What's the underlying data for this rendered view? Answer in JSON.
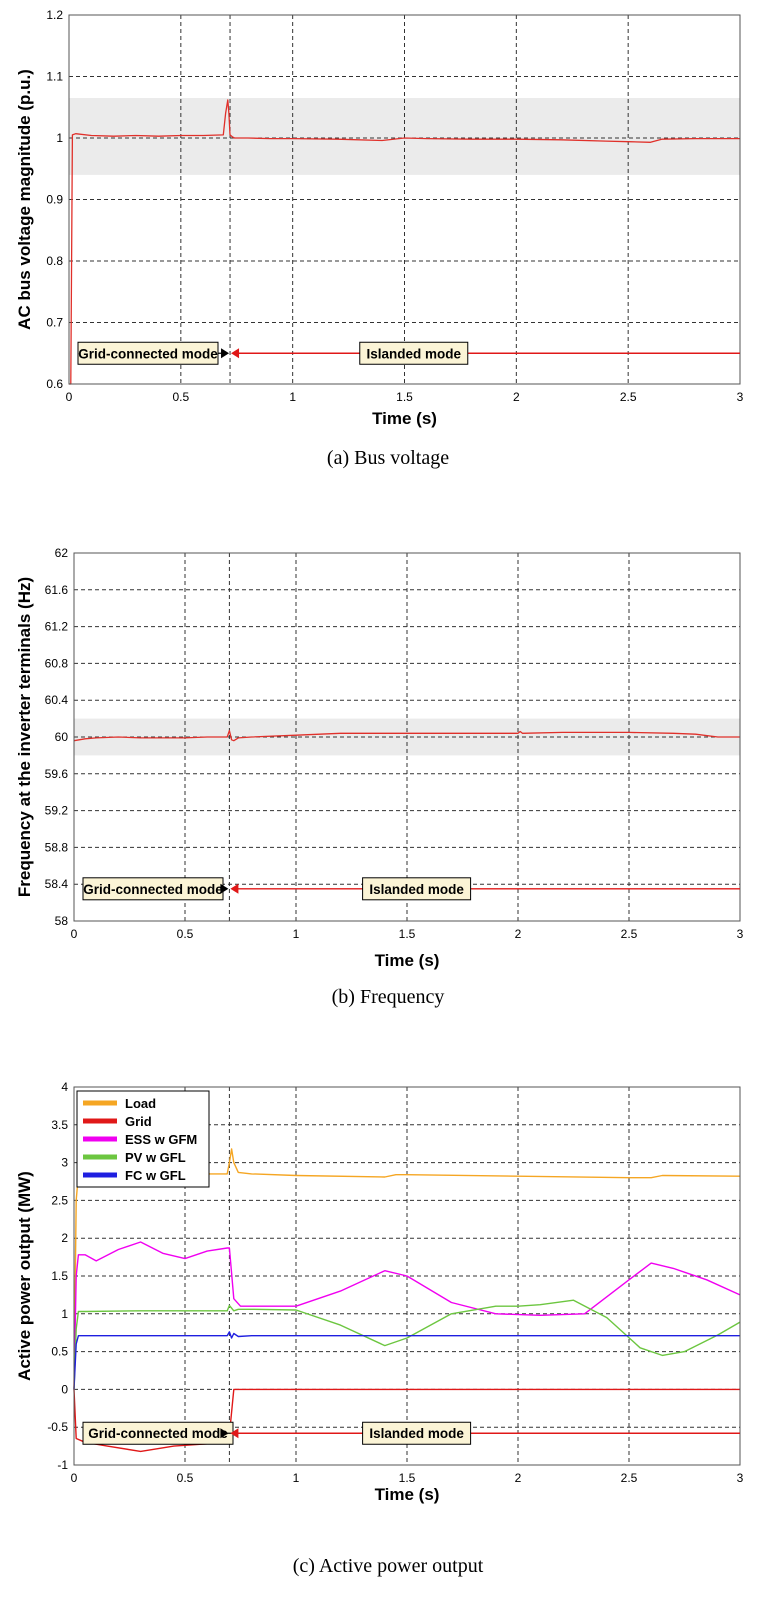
{
  "chart_data": [
    {
      "type": "line",
      "caption": "(a)  Bus  voltage",
      "xlabel": "Time (s)",
      "ylabel": "AC bus voltage magnitude (p.u.)",
      "xlim": [
        0,
        3
      ],
      "ylim": [
        0.6,
        1.2
      ],
      "xticks": [
        "0",
        "0.5",
        "1",
        "1.5",
        "2",
        "2.5",
        "3"
      ],
      "yticks": [
        "0.6",
        "0.7",
        "0.8",
        "0.9",
        "1",
        "1.1",
        "1.2"
      ],
      "grid": "dashed",
      "band": [
        0.94,
        1.065
      ],
      "switch_time": 0.72,
      "mode_labels": {
        "left": "Grid-connected mode",
        "right": "Islanded mode"
      },
      "mode_level": 0.65,
      "series": [
        {
          "color": "#e0302a",
          "x": [
            0,
            0.008,
            0.015,
            0.03,
            0.1,
            0.2,
            0.3,
            0.4,
            0.5,
            0.6,
            0.69,
            0.7,
            0.71,
            0.715,
            0.72,
            0.73,
            0.74,
            0.8,
            0.9,
            1.0,
            1.2,
            1.4,
            1.5,
            1.6,
            1.8,
            2.0,
            2.2,
            2.4,
            2.5,
            2.6,
            2.65,
            2.8,
            3.0
          ],
          "y": [
            0.6,
            0.6,
            1.005,
            1.007,
            1.004,
            1.003,
            1.004,
            1.003,
            1.004,
            1.004,
            1.005,
            1.04,
            1.062,
            1.04,
            1.005,
            1.002,
            1.0,
            1.0,
            0.999,
            0.999,
            0.998,
            0.996,
            1.0,
            0.999,
            0.998,
            0.998,
            0.997,
            0.995,
            0.994,
            0.993,
            0.998,
            0.999,
            0.999
          ]
        }
      ]
    },
    {
      "type": "line",
      "caption": "(b)  Frequency",
      "xlabel": "Time (s)",
      "ylabel": "Frequency at the inverter terminals (Hz)",
      "xlim": [
        0,
        3
      ],
      "ylim": [
        58,
        62
      ],
      "xticks": [
        "0",
        "0.5",
        "1",
        "1.5",
        "2",
        "2.5",
        "3"
      ],
      "yticks": [
        "58",
        "58.4",
        "58.8",
        "59.2",
        "59.6",
        "60",
        "60.4",
        "60.8",
        "61.2",
        "61.6",
        "62"
      ],
      "grid": "dashed",
      "band": [
        59.8,
        60.2
      ],
      "switch_time": 0.7,
      "mode_labels": {
        "left": "Grid-connected mode",
        "right": "Islanded mode"
      },
      "mode_level": 58.35,
      "series": [
        {
          "color": "#e0302a",
          "x": [
            0,
            0.05,
            0.1,
            0.2,
            0.3,
            0.4,
            0.5,
            0.6,
            0.69,
            0.7,
            0.71,
            0.72,
            0.74,
            0.8,
            1.0,
            1.2,
            1.5,
            1.8,
            2.0,
            2.01,
            2.02,
            2.2,
            2.5,
            2.7,
            2.8,
            2.9,
            3.0
          ],
          "y": [
            59.96,
            59.98,
            59.99,
            60.0,
            59.99,
            59.99,
            59.99,
            60.0,
            60.0,
            60.07,
            59.97,
            59.96,
            59.99,
            60.0,
            60.02,
            60.04,
            60.04,
            60.04,
            60.04,
            60.06,
            60.04,
            60.05,
            60.05,
            60.04,
            60.03,
            60.0,
            60.0
          ]
        }
      ]
    },
    {
      "type": "line",
      "caption": "(c)  Active  power  output",
      "xlabel": "Time (s)",
      "ylabel": "Active power output (MW)",
      "xlim": [
        0,
        3
      ],
      "ylim": [
        -1,
        4
      ],
      "xticks": [
        "0",
        "0.5",
        "1",
        "1.5",
        "2",
        "2.5",
        "3"
      ],
      "yticks": [
        "-1",
        "-0.5",
        "0",
        "0.5",
        "1",
        "1.5",
        "2",
        "2.5",
        "3",
        "3.5",
        "4"
      ],
      "grid": "dashed",
      "legend": "top-left",
      "switch_time": 0.7,
      "mode_labels": {
        "left": "Grid-connected mode",
        "right": "Islanded mode"
      },
      "mode_level": -0.58,
      "series": [
        {
          "name": "Load",
          "color": "#f5a623",
          "x": [
            0,
            0.01,
            0.02,
            0.05,
            0.3,
            0.6,
            0.69,
            0.7,
            0.71,
            0.72,
            0.74,
            0.8,
            1.0,
            1.4,
            1.45,
            1.5,
            2.0,
            2.5,
            2.6,
            2.65,
            3.0
          ],
          "y": [
            0,
            2.5,
            2.85,
            2.85,
            2.85,
            2.85,
            2.85,
            3.0,
            3.18,
            3.0,
            2.87,
            2.85,
            2.83,
            2.81,
            2.84,
            2.84,
            2.82,
            2.8,
            2.8,
            2.83,
            2.82
          ]
        },
        {
          "name": "Grid",
          "color": "#e01818",
          "x": [
            0,
            0.01,
            0.05,
            0.15,
            0.3,
            0.45,
            0.6,
            0.69,
            0.7,
            0.72,
            0.73,
            1.0,
            2.0,
            3.0
          ],
          "y": [
            0,
            -0.65,
            -0.7,
            -0.75,
            -0.82,
            -0.75,
            -0.72,
            -0.72,
            -0.6,
            0.0,
            0.0,
            0.0,
            0.0,
            0.0
          ]
        },
        {
          "name": "ESS w GFM",
          "color": "#f000f0",
          "x": [
            0,
            0.01,
            0.02,
            0.05,
            0.1,
            0.2,
            0.3,
            0.4,
            0.5,
            0.6,
            0.69,
            0.7,
            0.72,
            0.75,
            0.8,
            1.0,
            1.2,
            1.4,
            1.5,
            1.7,
            1.9,
            2.1,
            2.3,
            2.5,
            2.6,
            2.7,
            2.85,
            3.0
          ],
          "y": [
            0,
            1.5,
            1.78,
            1.78,
            1.7,
            1.85,
            1.95,
            1.8,
            1.73,
            1.83,
            1.87,
            1.87,
            1.2,
            1.1,
            1.1,
            1.1,
            1.3,
            1.57,
            1.5,
            1.15,
            1.0,
            0.98,
            1.0,
            1.45,
            1.67,
            1.6,
            1.45,
            1.25
          ]
        },
        {
          "name": "PV w GFL",
          "color": "#6cc640",
          "x": [
            0,
            0.01,
            0.02,
            0.05,
            0.3,
            0.6,
            0.69,
            0.7,
            0.72,
            0.74,
            0.8,
            1.0,
            1.2,
            1.4,
            1.5,
            1.7,
            1.9,
            2.0,
            2.1,
            2.25,
            2.4,
            2.55,
            2.65,
            2.75,
            2.9,
            3.0
          ],
          "y": [
            0,
            0.8,
            1.03,
            1.03,
            1.04,
            1.04,
            1.04,
            1.11,
            1.04,
            1.06,
            1.06,
            1.05,
            0.85,
            0.58,
            0.68,
            1.0,
            1.1,
            1.1,
            1.12,
            1.18,
            0.95,
            0.55,
            0.45,
            0.5,
            0.72,
            0.89
          ]
        },
        {
          "name": "FC w GFL",
          "color": "#1f1fe0",
          "x": [
            0,
            0.01,
            0.02,
            0.05,
            0.3,
            0.6,
            0.69,
            0.7,
            0.71,
            0.72,
            0.74,
            0.8,
            1.0,
            2.0,
            3.0
          ],
          "y": [
            0,
            0.6,
            0.71,
            0.71,
            0.71,
            0.71,
            0.71,
            0.76,
            0.68,
            0.74,
            0.7,
            0.71,
            0.71,
            0.71,
            0.71
          ]
        }
      ]
    }
  ]
}
